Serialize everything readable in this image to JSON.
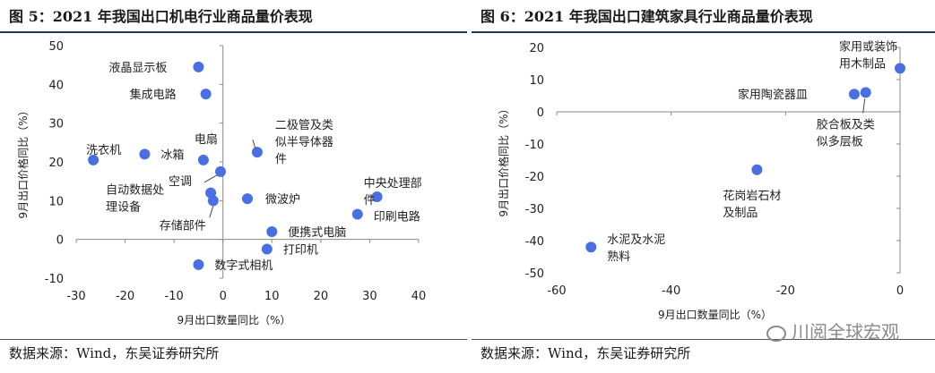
{
  "left": {
    "title": "图 5：2021 年我国出口机电行业商品量价表现",
    "source": "数据来源：Wind，东吴证券研究所"
  },
  "right": {
    "title": "图 6：2021 年我国出口建筑家具行业商品量价表现",
    "source": "数据来源：Wind，东吴证券研究所"
  },
  "watermark": "川阅全球宏观",
  "chart_data": [
    {
      "type": "scatter",
      "title": "图 5：2021 年我国出口机电行业商品量价表现",
      "xlabel": "9月出口数量同比（%）",
      "ylabel": "9月出口价格同比（%）",
      "xlim": [
        -30,
        40
      ],
      "ylim": [
        -10,
        50
      ],
      "xticks": [
        -30,
        -20,
        -10,
        0,
        10,
        20,
        30,
        40
      ],
      "yticks": [
        -10,
        0,
        10,
        20,
        30,
        40,
        50
      ],
      "color": "#4a6fe3",
      "points": [
        {
          "label": "液晶显示板",
          "x": -5,
          "y": 44.5
        },
        {
          "label": "集成电路",
          "x": -3.5,
          "y": 37.5
        },
        {
          "label": "二极管及类似半导体器件",
          "x": 7,
          "y": 22.5
        },
        {
          "label": "洗衣机",
          "x": -26.5,
          "y": 20.5
        },
        {
          "label": "冰箱",
          "x": -16,
          "y": 22
        },
        {
          "label": "电扇",
          "x": -4,
          "y": 20.5
        },
        {
          "label": "空调",
          "x": -0.5,
          "y": 17.5
        },
        {
          "label": "自动数据处理设备",
          "x": -2.5,
          "y": 12
        },
        {
          "label": "存储部件",
          "x": -2,
          "y": 10
        },
        {
          "label": "微波炉",
          "x": 5,
          "y": 10.5
        },
        {
          "label": "中央处理部件",
          "x": 31.5,
          "y": 11
        },
        {
          "label": "印刷电路",
          "x": 27.5,
          "y": 6.5
        },
        {
          "label": "便携式电脑",
          "x": 10,
          "y": 2
        },
        {
          "label": "打印机",
          "x": 9,
          "y": -2.5
        },
        {
          "label": "数字式相机",
          "x": -5,
          "y": -6.5
        }
      ]
    },
    {
      "type": "scatter",
      "title": "图 6：2021 年我国出口建筑家具行业商品量价表现",
      "xlabel": "9月出口数量同比（%）",
      "ylabel": "9月出口价格同比（%）",
      "xlim": [
        -60,
        0
      ],
      "ylim": [
        -50,
        20
      ],
      "xticks": [
        -60,
        -40,
        -20,
        0
      ],
      "yticks": [
        -50,
        -40,
        -30,
        -20,
        -10,
        0,
        10,
        20
      ],
      "color": "#4a6fe3",
      "points": [
        {
          "label": "家用或装饰用木制品",
          "x": 0,
          "y": 13.5
        },
        {
          "label": "家用陶瓷器皿",
          "x": -8,
          "y": 5.5
        },
        {
          "label": "胶合板及类似多层板",
          "x": -6,
          "y": 6
        },
        {
          "label": "花岗岩石材及制品",
          "x": -25,
          "y": -18
        },
        {
          "label": "水泥及水泥熟料",
          "x": -54,
          "y": -42
        }
      ]
    }
  ]
}
